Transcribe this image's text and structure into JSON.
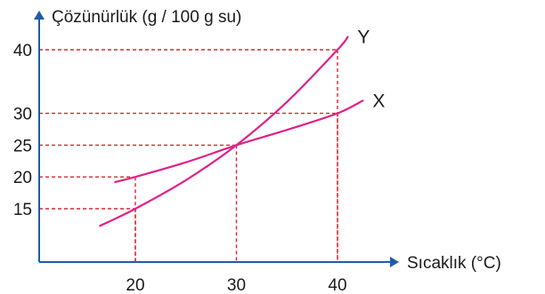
{
  "chart_data": {
    "type": "line",
    "ylabel": "Çözünürlük (g / 100 g su)",
    "xlabel": "Sıcaklık (°C)",
    "xlim": [
      10,
      48
    ],
    "ylim": [
      9,
      48
    ],
    "x_ticks": [
      20,
      30,
      40
    ],
    "y_ticks": [
      15,
      20,
      25,
      30,
      40
    ],
    "line_color": "#e0218a",
    "guide_color": "#d7262e",
    "axis_color": "#1f5ca8",
    "series": [
      {
        "name": "Y",
        "x": [
          16.5,
          20,
          25,
          30,
          35,
          40,
          41
        ],
        "y": [
          12.3,
          15,
          19.5,
          25,
          31.8,
          40,
          42
        ]
      },
      {
        "name": "X",
        "x": [
          18,
          20,
          25,
          30,
          35,
          40,
          42.5
        ],
        "y": [
          19.2,
          20,
          22.3,
          25,
          27.4,
          30,
          32
        ]
      }
    ],
    "guides": [
      {
        "x": 20,
        "y": 15
      },
      {
        "x": 20,
        "y": 20
      },
      {
        "x": 30,
        "y": 25
      },
      {
        "x": 40,
        "y": 30
      },
      {
        "x": 40,
        "y": 40
      }
    ]
  }
}
